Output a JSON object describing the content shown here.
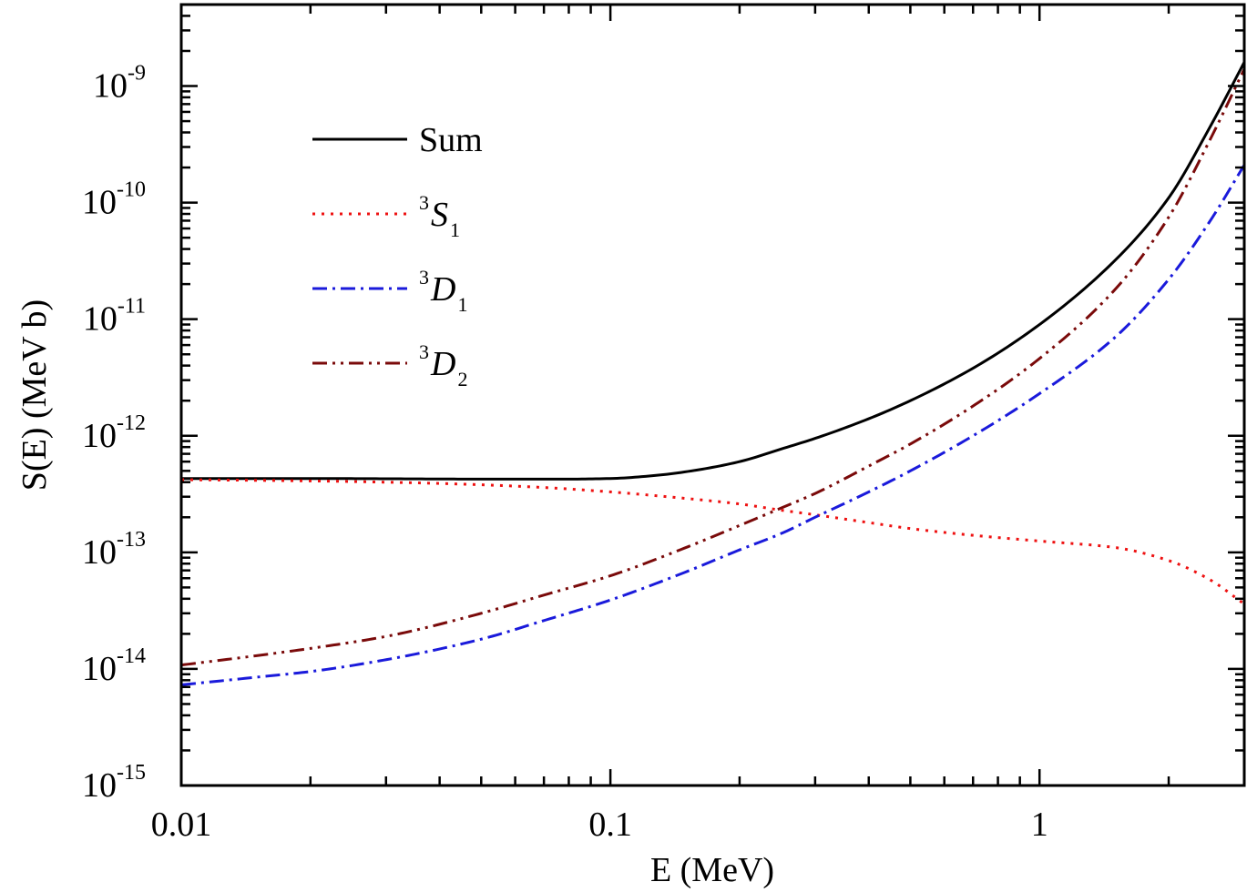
{
  "chart_data": {
    "type": "line",
    "title": "",
    "xlabel": "E (MeV)",
    "ylabel": "S(E) (MeV b)",
    "xscale": "log",
    "yscale": "log",
    "xlim": [
      0.01,
      3.0
    ],
    "ylim": [
      1e-15,
      5e-09
    ],
    "x_ticks": [
      {
        "value": 0.01,
        "label": "0.01"
      },
      {
        "value": 0.1,
        "label": "0.1"
      },
      {
        "value": 1,
        "label": "1"
      }
    ],
    "y_ticks": [
      {
        "value": 1e-15,
        "base": "10",
        "exp": "-15"
      },
      {
        "value": 1e-14,
        "base": "10",
        "exp": "-14"
      },
      {
        "value": 1e-13,
        "base": "10",
        "exp": "-13"
      },
      {
        "value": 1e-12,
        "base": "10",
        "exp": "-12"
      },
      {
        "value": 1e-11,
        "base": "10",
        "exp": "-11"
      },
      {
        "value": 1e-10,
        "base": "10",
        "exp": "-10"
      },
      {
        "value": 1e-09,
        "base": "10",
        "exp": "-9"
      }
    ],
    "grid": false,
    "legend_position": "top-left",
    "series": [
      {
        "name": "Sum",
        "legend": {
          "pre": "",
          "main": "Sum",
          "sub": ""
        },
        "color": "#000000",
        "style": "solid",
        "x": [
          0.01,
          0.02,
          0.05,
          0.08,
          0.1,
          0.13,
          0.16,
          0.2,
          0.25,
          0.3,
          0.4,
          0.5,
          0.7,
          1.0,
          1.5,
          2.0,
          2.5,
          3.0
        ],
        "y": [
          4.3e-13,
          4.3e-13,
          4.25e-13,
          4.25e-13,
          4.3e-13,
          4.6e-13,
          5.1e-13,
          6e-13,
          7.7e-13,
          9.5e-13,
          1.4e-12,
          2e-12,
          3.8e-12,
          9e-12,
          3.2e-11,
          1.1e-10,
          4.5e-10,
          1.6e-09
        ]
      },
      {
        "name": "3S1",
        "legend": {
          "pre": "3",
          "main": "S",
          "sub": "1"
        },
        "color": "#ee1111",
        "style": "dotted",
        "x": [
          0.01,
          0.02,
          0.04,
          0.07,
          0.1,
          0.15,
          0.2,
          0.25,
          0.3,
          0.4,
          0.5,
          0.7,
          1.0,
          1.5,
          2.0,
          2.5,
          3.0
        ],
        "y": [
          4.2e-13,
          4.1e-13,
          3.9e-13,
          3.6e-13,
          3.3e-13,
          2.9e-13,
          2.6e-13,
          2.3e-13,
          2.1e-13,
          1.8e-13,
          1.6e-13,
          1.4e-13,
          1.25e-13,
          1.1e-13,
          8.5e-14,
          5.8e-14,
          3.6e-14
        ]
      },
      {
        "name": "3D1",
        "legend": {
          "pre": "3",
          "main": "D",
          "sub": "1"
        },
        "color": "#1a1adb",
        "style": "dashdot",
        "x": [
          0.01,
          0.015,
          0.02,
          0.03,
          0.05,
          0.07,
          0.1,
          0.15,
          0.2,
          0.25,
          0.3,
          0.4,
          0.5,
          0.7,
          1.0,
          1.5,
          2.0,
          2.5,
          3.0
        ],
        "y": [
          7.3e-15,
          8.5e-15,
          9.5e-15,
          1.2e-14,
          1.8e-14,
          2.6e-14,
          3.9e-14,
          6.8e-14,
          1.05e-13,
          1.45e-13,
          2e-13,
          3.3e-13,
          5e-13,
          1e-12,
          2.3e-12,
          7e-12,
          2.2e-11,
          7e-11,
          2.1e-10
        ]
      },
      {
        "name": "3D2",
        "legend": {
          "pre": "3",
          "main": "D",
          "sub": "2"
        },
        "color": "#7a0a0a",
        "style": "dashdotdot",
        "x": [
          0.01,
          0.015,
          0.02,
          0.03,
          0.05,
          0.07,
          0.1,
          0.15,
          0.2,
          0.25,
          0.3,
          0.4,
          0.5,
          0.7,
          1.0,
          1.5,
          2.0,
          2.5,
          3.0
        ],
        "y": [
          1.08e-14,
          1.3e-14,
          1.5e-14,
          1.9e-14,
          3e-14,
          4.3e-14,
          6.3e-14,
          1.1e-13,
          1.7e-13,
          2.4e-13,
          3.2e-13,
          5.5e-13,
          8.5e-13,
          1.8e-12,
          4.6e-12,
          1.8e-11,
          7.5e-11,
          3.5e-10,
          1.4e-09
        ]
      }
    ]
  }
}
